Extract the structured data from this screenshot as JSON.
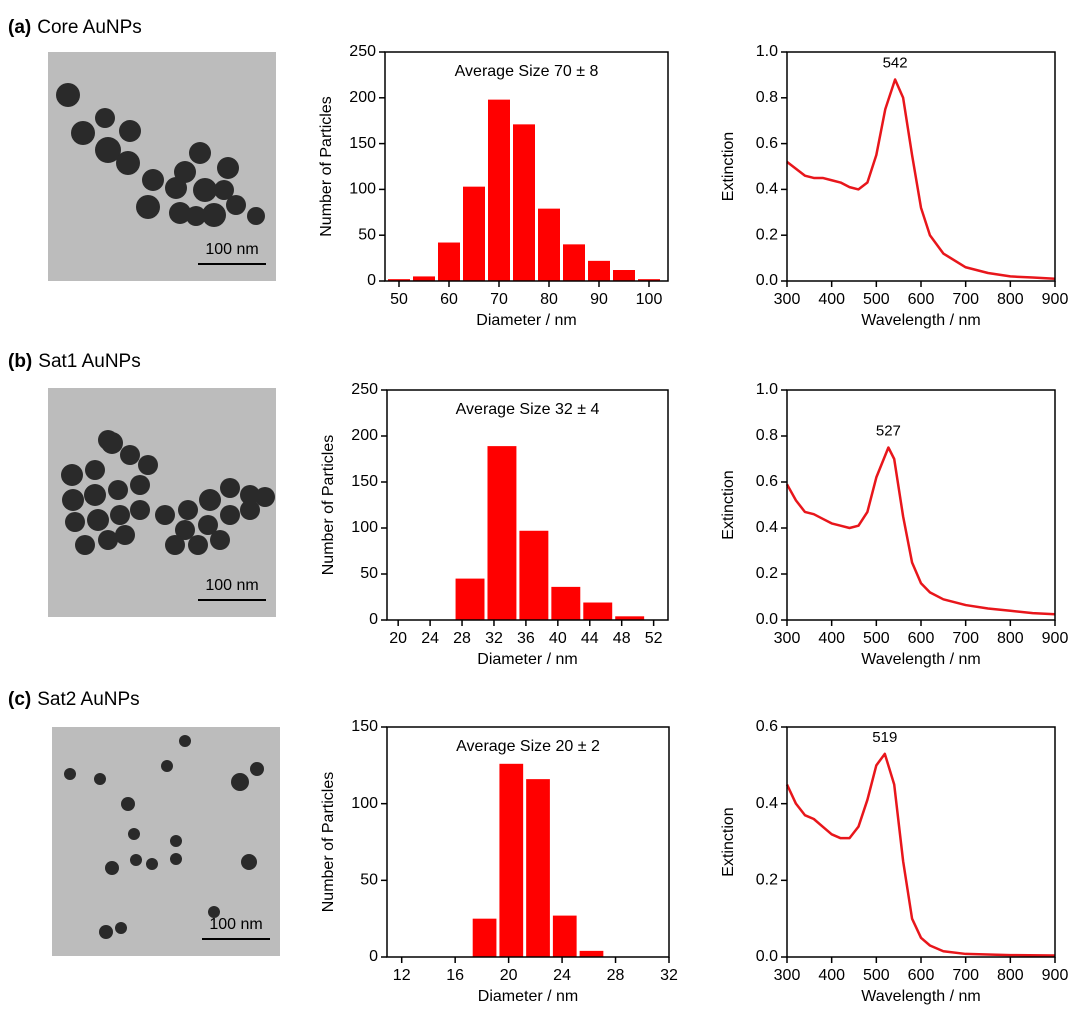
{
  "panels": [
    {
      "label": "(a)",
      "title": "Core AuNPs",
      "scale_bar": "100 nm"
    },
    {
      "label": "(b)",
      "title": "Sat1 AuNPs",
      "scale_bar": "100 nm"
    },
    {
      "label": "(c)",
      "title": "Sat2 AuNPs",
      "scale_bar": "100 nm"
    }
  ],
  "chart_data": [
    {
      "type": "histogram",
      "annotation": "Average Size 70 ± 8",
      "xlabel": "Diameter / nm",
      "ylabel": "Number of Particles",
      "color": "#ff0000",
      "bins": [
        47.5,
        52.5,
        57.5,
        62.5,
        67.5,
        72.5,
        77.5,
        82.5,
        87.5,
        92.5,
        97.5,
        102.5
      ],
      "values": [
        2,
        5,
        42,
        103,
        198,
        171,
        79,
        40,
        22,
        12,
        2
      ],
      "xlim": [
        47.2,
        103.8
      ],
      "xticks": [
        50,
        60,
        70,
        80,
        90,
        100
      ],
      "ylim": [
        0,
        250
      ],
      "yticks": [
        0,
        50,
        100,
        150,
        200,
        250
      ]
    },
    {
      "type": "line",
      "xlabel": "Wavelength / nm",
      "ylabel": "Extinction",
      "color": "#e8161b",
      "annotation": {
        "x": 542,
        "y": 0.88
      },
      "x": [
        300,
        320,
        340,
        360,
        380,
        400,
        420,
        440,
        460,
        480,
        500,
        520,
        542,
        560,
        580,
        600,
        620,
        650,
        700,
        750,
        800,
        850,
        900
      ],
      "values": [
        0.52,
        0.49,
        0.46,
        0.45,
        0.45,
        0.44,
        0.43,
        0.41,
        0.4,
        0.43,
        0.55,
        0.75,
        0.88,
        0.8,
        0.55,
        0.32,
        0.2,
        0.12,
        0.06,
        0.035,
        0.02,
        0.015,
        0.01
      ],
      "xlim": [
        300,
        900
      ],
      "xticks": [
        300,
        400,
        500,
        600,
        700,
        800,
        900
      ],
      "ylim": [
        0,
        1
      ],
      "yticks": [
        {
          "value": 0,
          "label": "0.0"
        },
        0.2,
        0.4,
        0.6,
        0.8,
        {
          "value": 1,
          "label": "1.0"
        }
      ]
    },
    {
      "type": "histogram",
      "annotation": "Average Size 32 ± 4",
      "xlabel": "Diameter / nm",
      "ylabel": "Number of Particles",
      "color": "#ff0000",
      "bins": [
        27,
        31,
        35,
        39,
        43,
        47,
        51
      ],
      "values": [
        45,
        189,
        97,
        36,
        19,
        4
      ],
      "xlim": [
        18.6,
        53.8
      ],
      "xticks": [
        20,
        24,
        28,
        32,
        36,
        40,
        44,
        48,
        52
      ],
      "ylim": [
        0,
        250
      ],
      "yticks": [
        0,
        50,
        100,
        150,
        200,
        250
      ]
    },
    {
      "type": "line",
      "xlabel": "Wavelength / nm",
      "ylabel": "Extinction",
      "color": "#e8161b",
      "annotation": {
        "x": 527,
        "y": 0.75
      },
      "x": [
        300,
        320,
        340,
        360,
        380,
        400,
        420,
        440,
        460,
        480,
        500,
        527,
        540,
        560,
        580,
        600,
        620,
        650,
        700,
        750,
        800,
        850,
        900
      ],
      "values": [
        0.59,
        0.52,
        0.47,
        0.46,
        0.44,
        0.42,
        0.41,
        0.4,
        0.41,
        0.47,
        0.62,
        0.75,
        0.7,
        0.45,
        0.25,
        0.16,
        0.12,
        0.09,
        0.065,
        0.05,
        0.04,
        0.03,
        0.025
      ],
      "xlim": [
        300,
        900
      ],
      "xticks": [
        300,
        400,
        500,
        600,
        700,
        800,
        900
      ],
      "ylim": [
        0,
        1
      ],
      "yticks": [
        {
          "value": 0,
          "label": "0.0"
        },
        0.2,
        0.4,
        0.6,
        0.8,
        {
          "value": 1,
          "label": "1.0"
        }
      ]
    },
    {
      "type": "histogram",
      "annotation": "Average Size 20 ± 2",
      "xlabel": "Diameter / nm",
      "ylabel": "Number of Particles",
      "color": "#ff0000",
      "bins": [
        17.2,
        19.2,
        21.2,
        23.2,
        25.2,
        27.2
      ],
      "values": [
        25,
        126,
        116,
        27,
        4
      ],
      "xlim": [
        10.9,
        32
      ],
      "xticks": [
        12,
        16,
        20,
        24,
        28,
        32
      ],
      "ylim": [
        0,
        150
      ],
      "yticks": [
        0,
        50,
        100,
        150
      ]
    },
    {
      "type": "line",
      "xlabel": "Wavelength / nm",
      "ylabel": "Extinction",
      "color": "#e8161b",
      "annotation": {
        "x": 519,
        "y": 0.53
      },
      "x": [
        300,
        320,
        340,
        360,
        380,
        400,
        420,
        440,
        460,
        480,
        500,
        519,
        540,
        560,
        580,
        600,
        620,
        650,
        700,
        800,
        900
      ],
      "values": [
        0.45,
        0.4,
        0.37,
        0.36,
        0.34,
        0.32,
        0.31,
        0.31,
        0.34,
        0.41,
        0.5,
        0.53,
        0.45,
        0.25,
        0.1,
        0.05,
        0.03,
        0.015,
        0.008,
        0.005,
        0.004
      ],
      "xlim": [
        300,
        900
      ],
      "xticks": [
        300,
        400,
        500,
        600,
        700,
        800,
        900
      ],
      "ylim": [
        0,
        0.6
      ],
      "yticks": [
        {
          "value": 0,
          "label": "0.0"
        },
        0.2,
        0.4,
        0.6
      ]
    }
  ]
}
